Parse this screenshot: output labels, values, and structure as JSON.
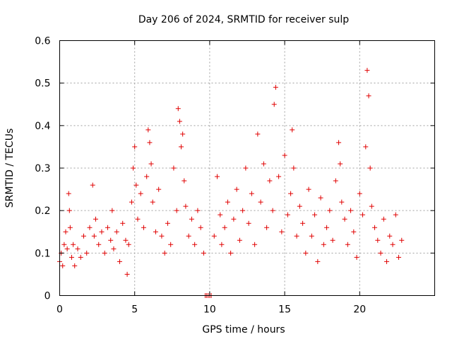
{
  "chart_data": {
    "type": "scatter",
    "title": "Day 206 of 2024, SRMTID for receiver sulp",
    "xlabel": "GPS time / hours",
    "ylabel": "SRMTID / TECUs",
    "xlim": [
      0,
      25
    ],
    "ylim": [
      0,
      0.6
    ],
    "xticks": [
      0,
      5,
      10,
      15,
      20
    ],
    "xtick_labels": [
      "0",
      "5",
      "10",
      "15",
      "20"
    ],
    "yticks": [
      0,
      0.1,
      0.2,
      0.3,
      0.4,
      0.5,
      0.6
    ],
    "ytick_labels": [
      "0",
      "0.1",
      "0.2",
      "0.3",
      "0.4",
      "0.5",
      "0.6"
    ],
    "grid": true,
    "marker": "plus",
    "color": "#e00000",
    "series": [
      {
        "name": "SRMTID",
        "x": [
          0.0,
          0.1,
          0.2,
          0.3,
          0.4,
          0.5,
          0.6,
          0.65,
          0.7,
          0.8,
          0.9,
          1.0,
          1.2,
          1.4,
          1.6,
          1.8,
          2.0,
          2.2,
          2.3,
          2.4,
          2.6,
          2.8,
          3.0,
          3.2,
          3.4,
          3.5,
          3.6,
          3.8,
          4.0,
          4.2,
          4.4,
          4.5,
          4.6,
          4.8,
          4.9,
          5.0,
          5.1,
          5.2,
          5.4,
          5.6,
          5.8,
          5.9,
          6.0,
          6.1,
          6.2,
          6.4,
          6.6,
          6.8,
          7.0,
          7.2,
          7.4,
          7.6,
          7.8,
          7.9,
          8.0,
          8.1,
          8.2,
          8.3,
          8.4,
          8.6,
          8.8,
          9.0,
          9.2,
          9.4,
          9.6,
          9.7,
          9.8,
          9.9,
          10.0,
          10.1,
          10.3,
          10.5,
          10.7,
          10.8,
          11.0,
          11.2,
          11.4,
          11.6,
          11.8,
          12.0,
          12.2,
          12.4,
          12.6,
          12.8,
          13.0,
          13.2,
          13.4,
          13.6,
          13.8,
          14.0,
          14.2,
          14.3,
          14.4,
          14.6,
          14.8,
          15.0,
          15.2,
          15.4,
          15.5,
          15.6,
          15.8,
          16.0,
          16.2,
          16.4,
          16.6,
          16.8,
          17.0,
          17.2,
          17.4,
          17.6,
          17.8,
          18.0,
          18.2,
          18.4,
          18.6,
          18.7,
          18.8,
          19.0,
          19.2,
          19.4,
          19.6,
          19.8,
          20.0,
          20.2,
          20.4,
          20.5,
          20.6,
          20.7,
          20.8,
          21.0,
          21.2,
          21.4,
          21.6,
          21.8,
          22.0,
          22.2,
          22.4,
          22.6,
          22.8
        ],
        "y": [
          0.08,
          0.1,
          0.07,
          0.12,
          0.15,
          0.11,
          0.24,
          0.2,
          0.16,
          0.09,
          0.12,
          0.07,
          0.11,
          0.09,
          0.14,
          0.1,
          0.16,
          0.26,
          0.14,
          0.18,
          0.12,
          0.15,
          0.1,
          0.16,
          0.13,
          0.2,
          0.11,
          0.15,
          0.08,
          0.17,
          0.13,
          0.05,
          0.12,
          0.22,
          0.3,
          0.35,
          0.26,
          0.18,
          0.24,
          0.16,
          0.28,
          0.39,
          0.36,
          0.31,
          0.22,
          0.15,
          0.25,
          0.14,
          0.1,
          0.17,
          0.12,
          0.3,
          0.2,
          0.44,
          0.41,
          0.35,
          0.38,
          0.27,
          0.21,
          0.14,
          0.18,
          0.12,
          0.2,
          0.16,
          0.1,
          0.0,
          0.0,
          0.0,
          0.0,
          0.0,
          0.14,
          0.28,
          0.19,
          0.12,
          0.16,
          0.22,
          0.1,
          0.18,
          0.25,
          0.13,
          0.2,
          0.3,
          0.17,
          0.24,
          0.12,
          0.38,
          0.22,
          0.31,
          0.16,
          0.27,
          0.2,
          0.45,
          0.49,
          0.28,
          0.15,
          0.33,
          0.19,
          0.24,
          0.39,
          0.3,
          0.14,
          0.21,
          0.17,
          0.1,
          0.25,
          0.14,
          0.19,
          0.08,
          0.23,
          0.12,
          0.16,
          0.2,
          0.13,
          0.27,
          0.36,
          0.31,
          0.22,
          0.18,
          0.12,
          0.2,
          0.15,
          0.09,
          0.24,
          0.19,
          0.35,
          0.53,
          0.47,
          0.3,
          0.21,
          0.16,
          0.13,
          0.1,
          0.18,
          0.08,
          0.14,
          0.12,
          0.19,
          0.09,
          0.13
        ]
      }
    ]
  }
}
